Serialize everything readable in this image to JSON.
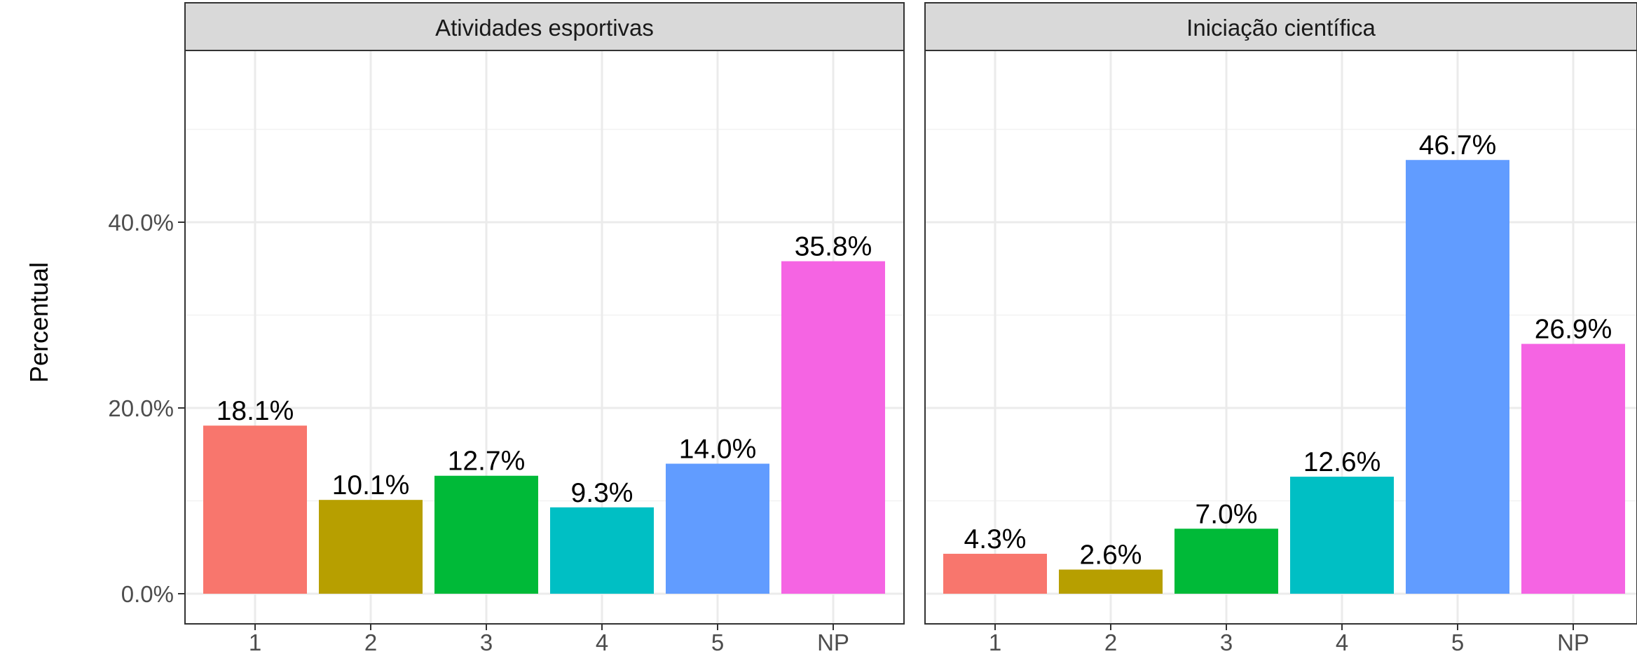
{
  "chart_data": {
    "type": "bar",
    "ylabel": "Percentual",
    "ylim": [
      0,
      58
    ],
    "y_ticks": [
      0,
      20,
      40
    ],
    "y_tick_labels": [
      "0.0%",
      "20.0%",
      "40.0%"
    ],
    "grid": true,
    "legend": "none",
    "categories": [
      "1",
      "2",
      "3",
      "4",
      "5",
      "NP"
    ],
    "category_colors": [
      "#F8766D",
      "#B79F00",
      "#00BA38",
      "#00BFC4",
      "#619CFF",
      "#F564E3"
    ],
    "panels": [
      {
        "title": "Atividades esportivas",
        "values": [
          18.1,
          10.1,
          12.7,
          9.3,
          14.0,
          35.8
        ],
        "value_labels": [
          "18.1%",
          "10.1%",
          "12.7%",
          "9.3%",
          "14.0%",
          "35.8%"
        ]
      },
      {
        "title": "Iniciação científica",
        "values": [
          4.3,
          2.6,
          7.0,
          12.6,
          46.7,
          26.9
        ],
        "value_labels": [
          "4.3%",
          "2.6%",
          "7.0%",
          "12.6%",
          "46.7%",
          "26.9%"
        ]
      }
    ]
  }
}
